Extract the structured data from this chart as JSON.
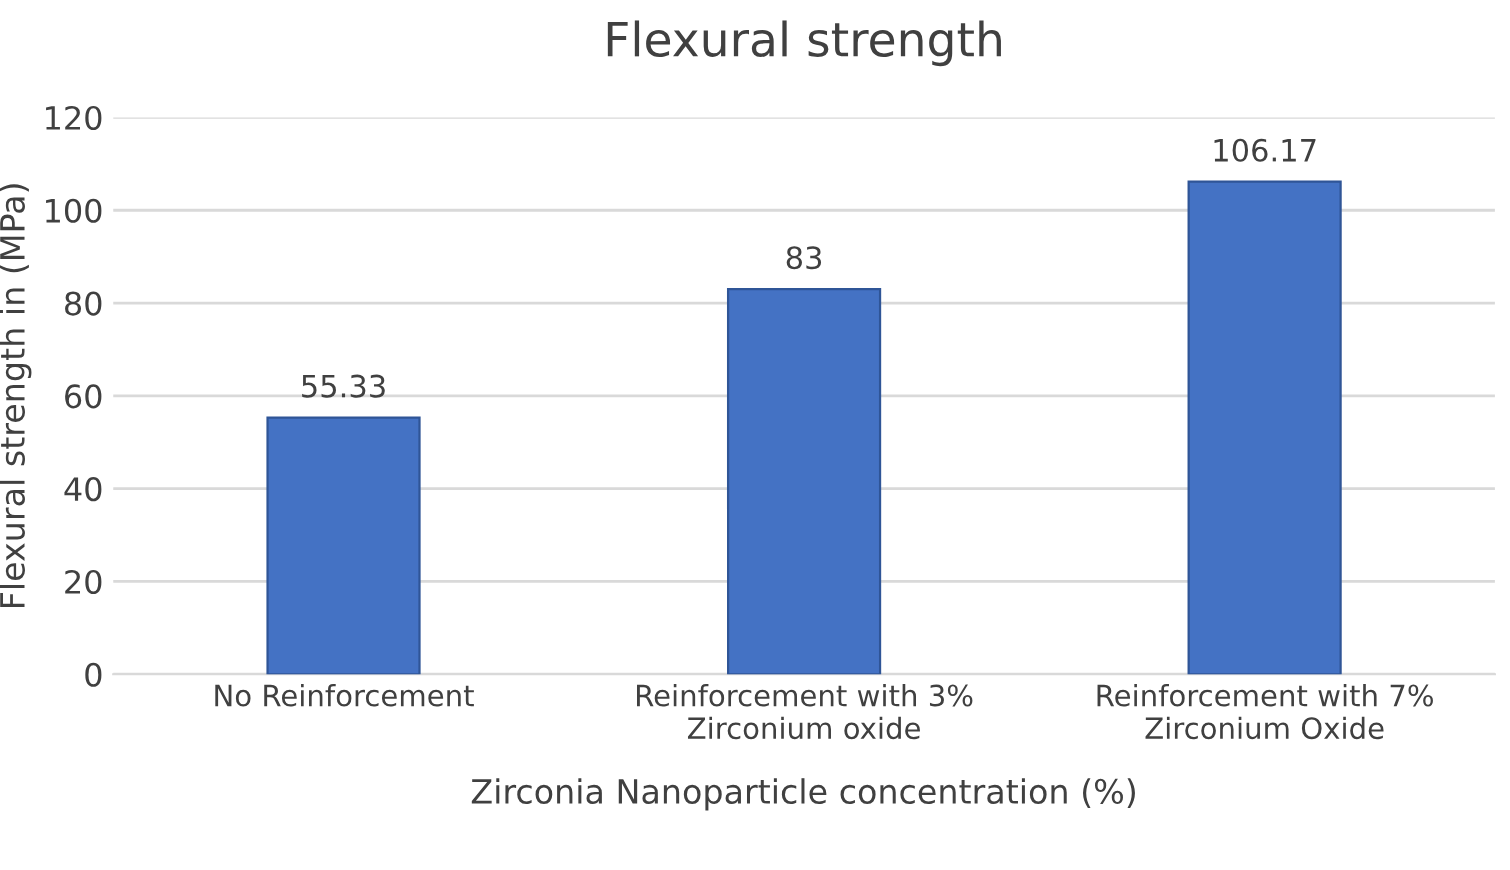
{
  "chart_data": {
    "type": "bar",
    "title": "Flexural strength",
    "xlabel": "Zirconia Nanoparticle concentration (%)",
    "ylabel": "Flexural strength in (MPa)",
    "categories": [
      "No Reinforcement",
      "Reinforcement with 3%\nZirconium oxide",
      "Reinforcement with 7%\nZirconium Oxide"
    ],
    "values": [
      55.33,
      83,
      106.17
    ],
    "color": "#4472c4",
    "ylim": [
      0,
      120
    ],
    "yticks": [
      0,
      20,
      40,
      60,
      80,
      100,
      120
    ],
    "grid": "y",
    "data_labels": true
  }
}
